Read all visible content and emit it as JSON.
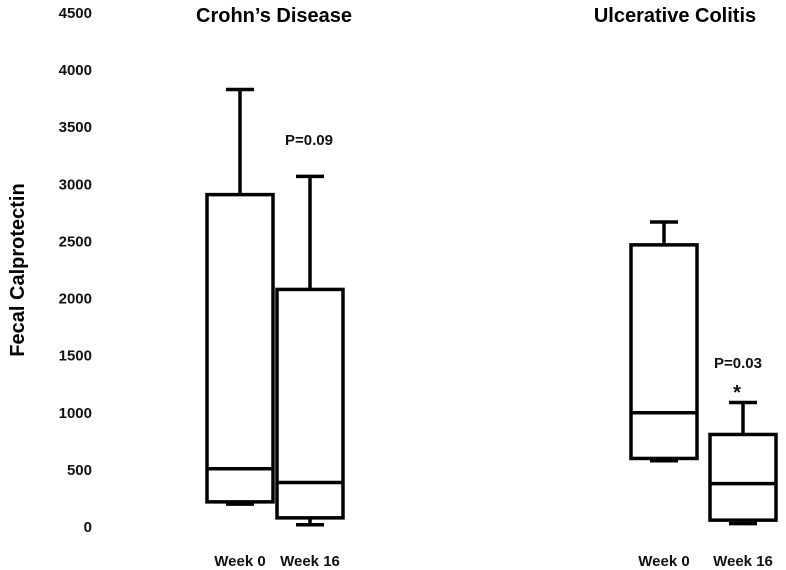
{
  "chart_data": {
    "type": "box",
    "ylabel": "Fecal Calprotectin",
    "ylim": [
      0,
      4500
    ],
    "yticks": [
      0,
      500,
      1000,
      1500,
      2000,
      2500,
      3000,
      3500,
      4000,
      4500
    ],
    "panels": [
      {
        "title": "Crohn’s Disease",
        "annotation": "P=0.09",
        "groups": [
          {
            "category": "Week 0",
            "min": 200,
            "q1": 220,
            "median": 510,
            "q3": 2910,
            "max": 3830
          },
          {
            "category": "Week 16",
            "min": 20,
            "q1": 80,
            "median": 390,
            "q3": 2080,
            "max": 3070
          }
        ]
      },
      {
        "title": "Ulcerative Colitis",
        "annotation": "P=0.03",
        "marker": "*",
        "groups": [
          {
            "category": "Week 0",
            "min": 580,
            "q1": 600,
            "median": 1000,
            "q3": 2470,
            "max": 2670
          },
          {
            "category": "Week 16",
            "min": 30,
            "q1": 60,
            "median": 380,
            "q3": 810,
            "max": 1090
          }
        ]
      }
    ]
  }
}
